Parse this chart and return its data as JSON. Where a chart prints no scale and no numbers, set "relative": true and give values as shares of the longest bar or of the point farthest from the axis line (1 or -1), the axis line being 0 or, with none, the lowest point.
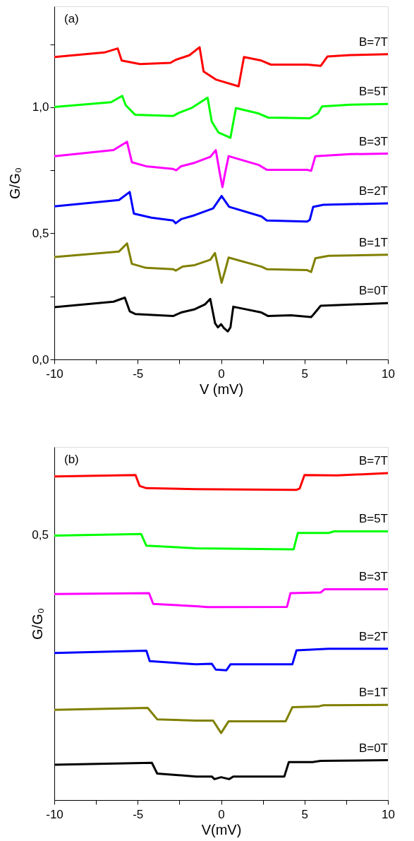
{
  "chart_data": [
    {
      "type": "line",
      "xlabel": "V (mV)",
      "ylabel": "G/G₀",
      "annotations": [
        "(a)"
      ],
      "xlim": [
        -10,
        10
      ],
      "ylim": [
        0,
        1.4
      ],
      "xticks": [
        -10,
        {
          "value": -7.5,
          "label": null
        },
        -5,
        {
          "value": -2.5,
          "label": null
        },
        0,
        {
          "value": 2.5,
          "label": null
        },
        5,
        {
          "value": 7.5,
          "label": null
        },
        10
      ],
      "yticks": [
        {
          "value": 0,
          "label": "0,0"
        },
        {
          "value": 0.25,
          "label": null
        },
        {
          "value": 0.5,
          "label": "0,5"
        },
        {
          "value": 0.75,
          "label": null
        },
        {
          "value": 1.0,
          "label": "1,0"
        },
        {
          "value": 1.25,
          "label": null
        }
      ],
      "grid": false,
      "legend": false,
      "marker": "none",
      "line_style": "solid",
      "series": [
        {
          "name": "B=7T",
          "color": "#ff0000",
          "x": [
            -10,
            -7.0,
            -6.2,
            -5.96,
            -4.86,
            -3.04,
            -2.72,
            -1.9,
            -1.29,
            -1.05,
            -0.32,
            1.05,
            1.37,
            2.42,
            2.98,
            5.16,
            5.97,
            6.37,
            7.74,
            10
          ],
          "values": [
            1.199,
            1.217,
            1.233,
            1.185,
            1.171,
            1.176,
            1.188,
            1.206,
            1.238,
            1.142,
            1.11,
            1.083,
            1.199,
            1.185,
            1.169,
            1.169,
            1.164,
            1.201,
            1.207,
            1.21
          ]
        },
        {
          "name": "B=5T",
          "color": "#00ff00",
          "x": [
            -10,
            -6.6,
            -5.93,
            -5.72,
            -5.15,
            -2.88,
            -2.56,
            -1.74,
            -0.81,
            -0.56,
            -0.16,
            0.56,
            0.89,
            2.26,
            2.82,
            5.32,
            5.81,
            6.05,
            7.74,
            10
          ],
          "values": [
            1.001,
            1.02,
            1.045,
            1.008,
            0.97,
            0.965,
            0.977,
            0.998,
            1.038,
            0.943,
            0.9,
            0.879,
            0.997,
            0.975,
            0.959,
            0.956,
            0.976,
            1.003,
            1.01,
            1.013
          ]
        },
        {
          "name": "B=3T",
          "color": "#ff00ff",
          "x": [
            -10,
            -6.45,
            -5.64,
            -5.35,
            -4.5,
            -2.88,
            -2.69,
            -2.4,
            -1.58,
            -0.65,
            -0.32,
            -0.08,
            0.08,
            0.24,
            0.45,
            2.26,
            2.74,
            5.16,
            5.4,
            5.65,
            7.74,
            10
          ],
          "values": [
            0.806,
            0.83,
            0.863,
            0.782,
            0.766,
            0.755,
            0.75,
            0.766,
            0.78,
            0.803,
            0.83,
            0.739,
            0.683,
            0.739,
            0.806,
            0.771,
            0.752,
            0.752,
            0.748,
            0.806,
            0.814,
            0.816
          ]
        },
        {
          "name": "B=2T",
          "color": "#0000ff",
          "x": [
            -10,
            -6.12,
            -5.48,
            -5.23,
            -4.18,
            -2.88,
            -2.72,
            -2.4,
            -1.58,
            -0.48,
            0.03,
            0.48,
            2.42,
            2.74,
            5.16,
            5.32,
            5.52,
            6.13,
            10
          ],
          "values": [
            0.607,
            0.632,
            0.664,
            0.578,
            0.562,
            0.551,
            0.54,
            0.556,
            0.572,
            0.599,
            0.648,
            0.605,
            0.567,
            0.551,
            0.547,
            0.554,
            0.605,
            0.613,
            0.619
          ]
        },
        {
          "name": "B=1T",
          "color": "#808000",
          "x": [
            -10,
            -6.12,
            -5.64,
            -5.35,
            -4.5,
            -2.88,
            -2.72,
            -2.31,
            -1.58,
            -0.65,
            -0.37,
            -0.13,
            0.03,
            0.24,
            0.45,
            2.42,
            2.74,
            5.16,
            5.4,
            5.65,
            6.45,
            10
          ],
          "values": [
            0.406,
            0.428,
            0.46,
            0.379,
            0.363,
            0.358,
            0.352,
            0.368,
            0.374,
            0.395,
            0.422,
            0.352,
            0.304,
            0.352,
            0.404,
            0.368,
            0.358,
            0.354,
            0.347,
            0.401,
            0.411,
            0.415
          ]
        },
        {
          "name": "B=0T",
          "color": "#000000",
          "x": [
            -10,
            -6.45,
            -5.77,
            -5.48,
            -5.15,
            -2.88,
            -2.4,
            -1.58,
            -0.97,
            -0.65,
            -0.36,
            -0.19,
            0,
            0.16,
            0.4,
            0.56,
            0.73,
            2.42,
            2.82,
            4.19,
            5.4,
            5.56,
            5.97,
            10
          ],
          "values": [
            0.207,
            0.229,
            0.245,
            0.191,
            0.18,
            0.172,
            0.186,
            0.199,
            0.218,
            0.24,
            0.143,
            0.127,
            0.14,
            0.125,
            0.111,
            0.127,
            0.209,
            0.186,
            0.172,
            0.175,
            0.168,
            0.18,
            0.213,
            0.223
          ]
        }
      ]
    },
    {
      "type": "line",
      "xlabel": "V(mV)",
      "ylabel": "G/G₀",
      "annotations": [
        "(b)",
        "0,5"
      ],
      "relative": true,
      "xlim": [
        -10,
        10
      ],
      "xticks": [
        -10,
        {
          "value": -7.5,
          "label": null
        },
        -5,
        {
          "value": -2.5,
          "label": null
        },
        0,
        {
          "value": 2.5,
          "label": null
        },
        5,
        {
          "value": 7.5,
          "label": null
        },
        10
      ],
      "grid": false,
      "legend": false,
      "marker": "none",
      "line_style": "solid",
      "series": [
        {
          "name": "B=7T",
          "color": "#ff0000",
          "x": [
            -10,
            -5.13,
            -4.89,
            -4.48,
            -1.5,
            4.52,
            4.71,
            5.0,
            6.94,
            10
          ],
          "values": [
            0.99,
            0.994,
            0.961,
            0.954,
            0.951,
            0.949,
            0.953,
            0.994,
            0.993,
            1.0
          ]
        },
        {
          "name": "B=5T",
          "color": "#00ff00",
          "x": [
            -10,
            -4.8,
            -4.48,
            -1.5,
            4.35,
            4.6,
            6.45,
            6.77,
            10
          ],
          "values": [
            0.809,
            0.814,
            0.778,
            0.77,
            0.767,
            0.817,
            0.817,
            0.822,
            0.822
          ]
        },
        {
          "name": "B=3T",
          "color": "#ff00ff",
          "x": [
            -10,
            -4.32,
            -4.07,
            -1.5,
            -0.81,
            3.95,
            4.16,
            5.97,
            6.21,
            10
          ],
          "values": [
            0.63,
            0.633,
            0.6,
            0.593,
            0.59,
            0.591,
            0.633,
            0.635,
            0.645,
            0.645
          ]
        },
        {
          "name": "B=2T",
          "color": "#0000ff",
          "x": [
            -10,
            -4.48,
            -4.28,
            -1.5,
            -0.56,
            -0.32,
            0.32,
            0.56,
            4.27,
            4.52,
            6.45,
            10
          ],
          "values": [
            0.45,
            0.457,
            0.425,
            0.415,
            0.417,
            0.399,
            0.397,
            0.415,
            0.415,
            0.458,
            0.463,
            0.463
          ]
        },
        {
          "name": "B=1T",
          "color": "#808000",
          "x": [
            -10,
            -4.4,
            -3.83,
            -1.5,
            -0.48,
            0,
            0.45,
            3.87,
            4.27,
            5.81,
            6.13,
            10
          ],
          "values": [
            0.276,
            0.282,
            0.247,
            0.243,
            0.243,
            0.205,
            0.241,
            0.241,
            0.284,
            0.286,
            0.29,
            0.291
          ]
        },
        {
          "name": "B=0T",
          "color": "#000000",
          "x": [
            -10,
            -4.15,
            -3.83,
            -1.5,
            -0.56,
            -0.4,
            0,
            0.48,
            0.73,
            3.79,
            4.06,
            5.48,
            5.97,
            10
          ],
          "values": [
            0.108,
            0.114,
            0.081,
            0.072,
            0.072,
            0.064,
            0.07,
            0.064,
            0.072,
            0.072,
            0.116,
            0.116,
            0.12,
            0.122
          ]
        }
      ]
    }
  ]
}
